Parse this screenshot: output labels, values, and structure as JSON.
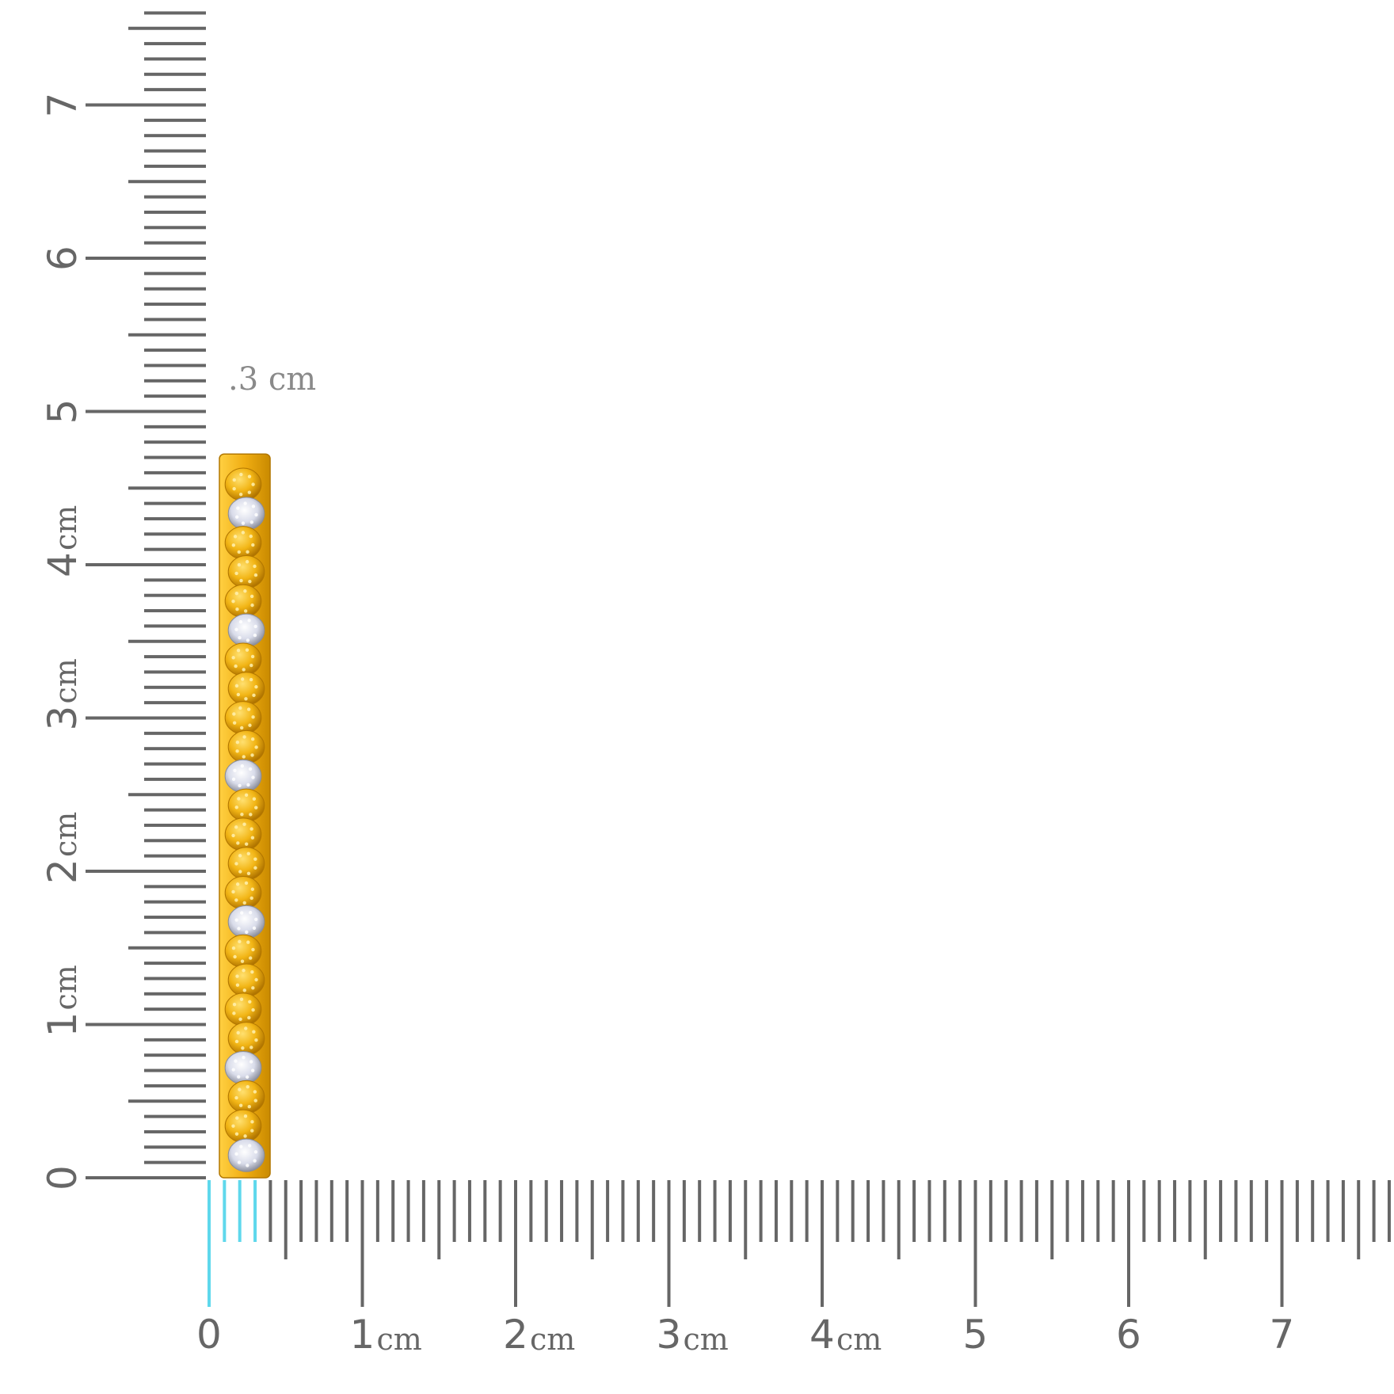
{
  "measurement": {
    "label": ".3 cm"
  },
  "rulers": {
    "unit_label": "cm",
    "horizontal": {
      "numbers": [
        "0",
        "1",
        "2",
        "3",
        "4",
        "5",
        "6",
        "7"
      ],
      "units": [
        "",
        "cm",
        "cm",
        "cm",
        "cm",
        "",
        "",
        ""
      ],
      "highlight_cm": 0.3
    },
    "vertical": {
      "numbers": [
        "0",
        "1",
        "2",
        "3",
        "4",
        "5",
        "6",
        "7"
      ],
      "units": [
        "",
        "cm",
        "cm",
        "cm",
        "cm",
        "",
        "",
        ""
      ]
    }
  },
  "product": {
    "description": "bangle side view",
    "length_cm": 4.8,
    "width_cm": 0.3,
    "bead_pattern": [
      "gold",
      "silver",
      "gold",
      "gold",
      "gold",
      "silver",
      "gold",
      "gold",
      "gold",
      "gold",
      "silver",
      "gold",
      "gold",
      "gold",
      "gold",
      "silver",
      "gold",
      "gold",
      "gold",
      "gold",
      "silver",
      "gold",
      "gold",
      "silver"
    ]
  },
  "colors": {
    "ruler": "#666666",
    "highlight": "#5fd8ec",
    "gold": "#f3b519",
    "gold_dark": "#b27700",
    "silver": "#dfe2ef",
    "caption": "#8a8a8a"
  }
}
